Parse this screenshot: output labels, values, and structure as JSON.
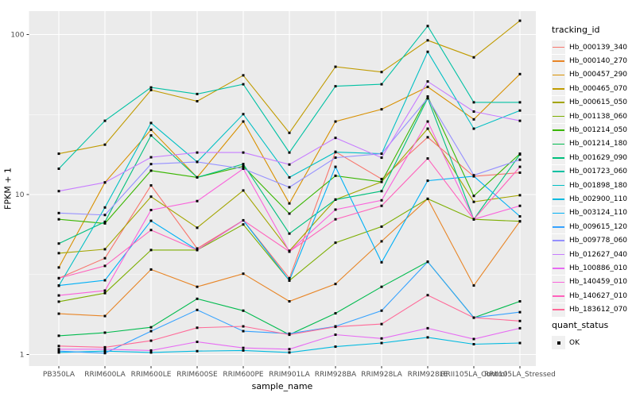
{
  "style": {
    "panel_bg": "#EBEBEB",
    "grid_color": "#FFFFFF",
    "point_color": "#000000",
    "axis_text_color": "#4D4D4D",
    "tick_color": "#333333",
    "legend_key_bg": "#F0F0F0"
  },
  "chart_data": {
    "type": "line",
    "title": "",
    "xlabel": "sample_name",
    "ylabel": "FPKM + 1",
    "y_scale": "log10",
    "ylim": [
      0.85,
      145
    ],
    "grid": true,
    "legend_position": "right",
    "y_tick_labels": [
      "1",
      "10",
      "100"
    ],
    "y_tick_values": [
      1,
      10,
      100
    ],
    "y_minor_values": [
      3.162,
      31.62
    ],
    "x_categories": [
      "PB350LA",
      "RRIM600LA",
      "RRIM600LE",
      "RRIM600SE",
      "RRIM600PE",
      "RRIM901LA",
      "RRIM928BA",
      "RRIM928LA",
      "RRIM928LE",
      "RRII105LA_Control",
      "RRII105LA_Stressed"
    ],
    "legend_title": "tracking_id",
    "legend2_title": "quant_status",
    "legend2_items": [
      "OK"
    ],
    "point_shape": "square",
    "series": [
      {
        "name": "Hb_000139_340",
        "color": "#F8766D",
        "values": [
          3.0,
          4.0,
          11.4,
          4.6,
          6.9,
          3.0,
          18.5,
          12.5,
          22.8,
          13.0,
          13.7
        ]
      },
      {
        "name": "Hb_000140_270",
        "color": "#E88526",
        "values": [
          1.8,
          1.74,
          3.4,
          2.65,
          3.2,
          2.15,
          2.76,
          5.1,
          9.4,
          2.7,
          6.8
        ]
      },
      {
        "name": "Hb_000457_290",
        "color": "#D89000",
        "values": [
          3.5,
          11.9,
          25.4,
          12.8,
          28.6,
          8.8,
          28.6,
          34.1,
          47.1,
          29.5,
          56.6
        ]
      },
      {
        "name": "Hb_000465_070",
        "color": "#C09B00",
        "values": [
          18.0,
          20.5,
          45.0,
          38.3,
          55.6,
          24.3,
          62.9,
          58.3,
          92.0,
          72.0,
          122.0
        ]
      },
      {
        "name": "Hb_000615_050",
        "color": "#A3A500",
        "values": [
          4.3,
          4.55,
          9.7,
          6.2,
          10.6,
          4.45,
          9.3,
          12.0,
          25.8,
          9.0,
          9.9
        ]
      },
      {
        "name": "Hb_001138_060",
        "color": "#7CAE00",
        "values": [
          2.14,
          2.42,
          4.5,
          4.5,
          6.5,
          2.9,
          5.0,
          6.3,
          9.4,
          7.0,
          6.8
        ]
      },
      {
        "name": "Hb_001214_050",
        "color": "#39B600",
        "values": [
          7.0,
          6.6,
          14.1,
          12.8,
          15.0,
          7.6,
          13.1,
          12.0,
          41.0,
          9.8,
          18.0
        ]
      },
      {
        "name": "Hb_001214_180",
        "color": "#00BB4E",
        "values": [
          1.31,
          1.37,
          1.48,
          2.23,
          1.88,
          1.33,
          1.81,
          2.65,
          3.8,
          1.7,
          2.15
        ]
      },
      {
        "name": "Hb_001629_090",
        "color": "#00BF7D",
        "values": [
          4.94,
          6.75,
          23.4,
          12.8,
          15.5,
          5.7,
          9.3,
          10.5,
          40.0,
          7.0,
          17.8
        ]
      },
      {
        "name": "Hb_001723_060",
        "color": "#00C1A3",
        "values": [
          14.5,
          28.9,
          46.7,
          42.5,
          48.9,
          18.3,
          47.5,
          48.9,
          113.0,
          37.7,
          37.7
        ]
      },
      {
        "name": "Hb_001898_180",
        "color": "#00BFC4",
        "values": [
          2.69,
          8.3,
          28.0,
          16.0,
          31.8,
          12.8,
          18.4,
          18.0,
          78.0,
          25.8,
          33.5
        ]
      },
      {
        "name": "Hb_002900_110",
        "color": "#00BAE0",
        "values": [
          1.03,
          1.05,
          1.03,
          1.05,
          1.06,
          1.03,
          1.12,
          1.18,
          1.28,
          1.16,
          1.18
        ]
      },
      {
        "name": "Hb_003124_110",
        "color": "#00B0F6",
        "values": [
          2.7,
          2.91,
          6.85,
          4.5,
          6.9,
          2.9,
          14.9,
          3.77,
          12.2,
          13.0,
          7.3
        ]
      },
      {
        "name": "Hb_009615_120",
        "color": "#35A2FF",
        "values": [
          1.05,
          1.02,
          1.4,
          1.9,
          1.4,
          1.35,
          1.5,
          1.88,
          3.8,
          1.7,
          1.84
        ]
      },
      {
        "name": "Hb_009778_060",
        "color": "#9590FF",
        "values": [
          7.66,
          7.45,
          15.5,
          16.0,
          14.5,
          11.1,
          17.0,
          18.0,
          40.0,
          13.2,
          16.5
        ]
      },
      {
        "name": "Hb_012627_040",
        "color": "#C77CFF",
        "values": [
          10.5,
          11.9,
          17.1,
          18.3,
          18.3,
          15.4,
          22.6,
          17.0,
          50.9,
          33.0,
          28.9
        ]
      },
      {
        "name": "Hb_100886_010",
        "color": "#E76BF3",
        "values": [
          1.08,
          1.08,
          1.06,
          1.2,
          1.1,
          1.08,
          1.33,
          1.26,
          1.46,
          1.25,
          1.46
        ]
      },
      {
        "name": "Hb_140459_010",
        "color": "#FA62DB",
        "values": [
          2.34,
          2.51,
          8.0,
          9.1,
          14.5,
          4.4,
          8.05,
          9.2,
          28.6,
          7.0,
          8.5
        ]
      },
      {
        "name": "Hb_140627_010",
        "color": "#FF62BC",
        "values": [
          3.0,
          3.58,
          6.0,
          4.5,
          6.9,
          4.4,
          7.0,
          8.5,
          16.8,
          7.0,
          14.9
        ]
      },
      {
        "name": "Hb_183612_070",
        "color": "#FF6A98",
        "values": [
          1.13,
          1.11,
          1.22,
          1.47,
          1.5,
          1.33,
          1.49,
          1.55,
          2.35,
          1.7,
          1.62
        ]
      }
    ]
  }
}
